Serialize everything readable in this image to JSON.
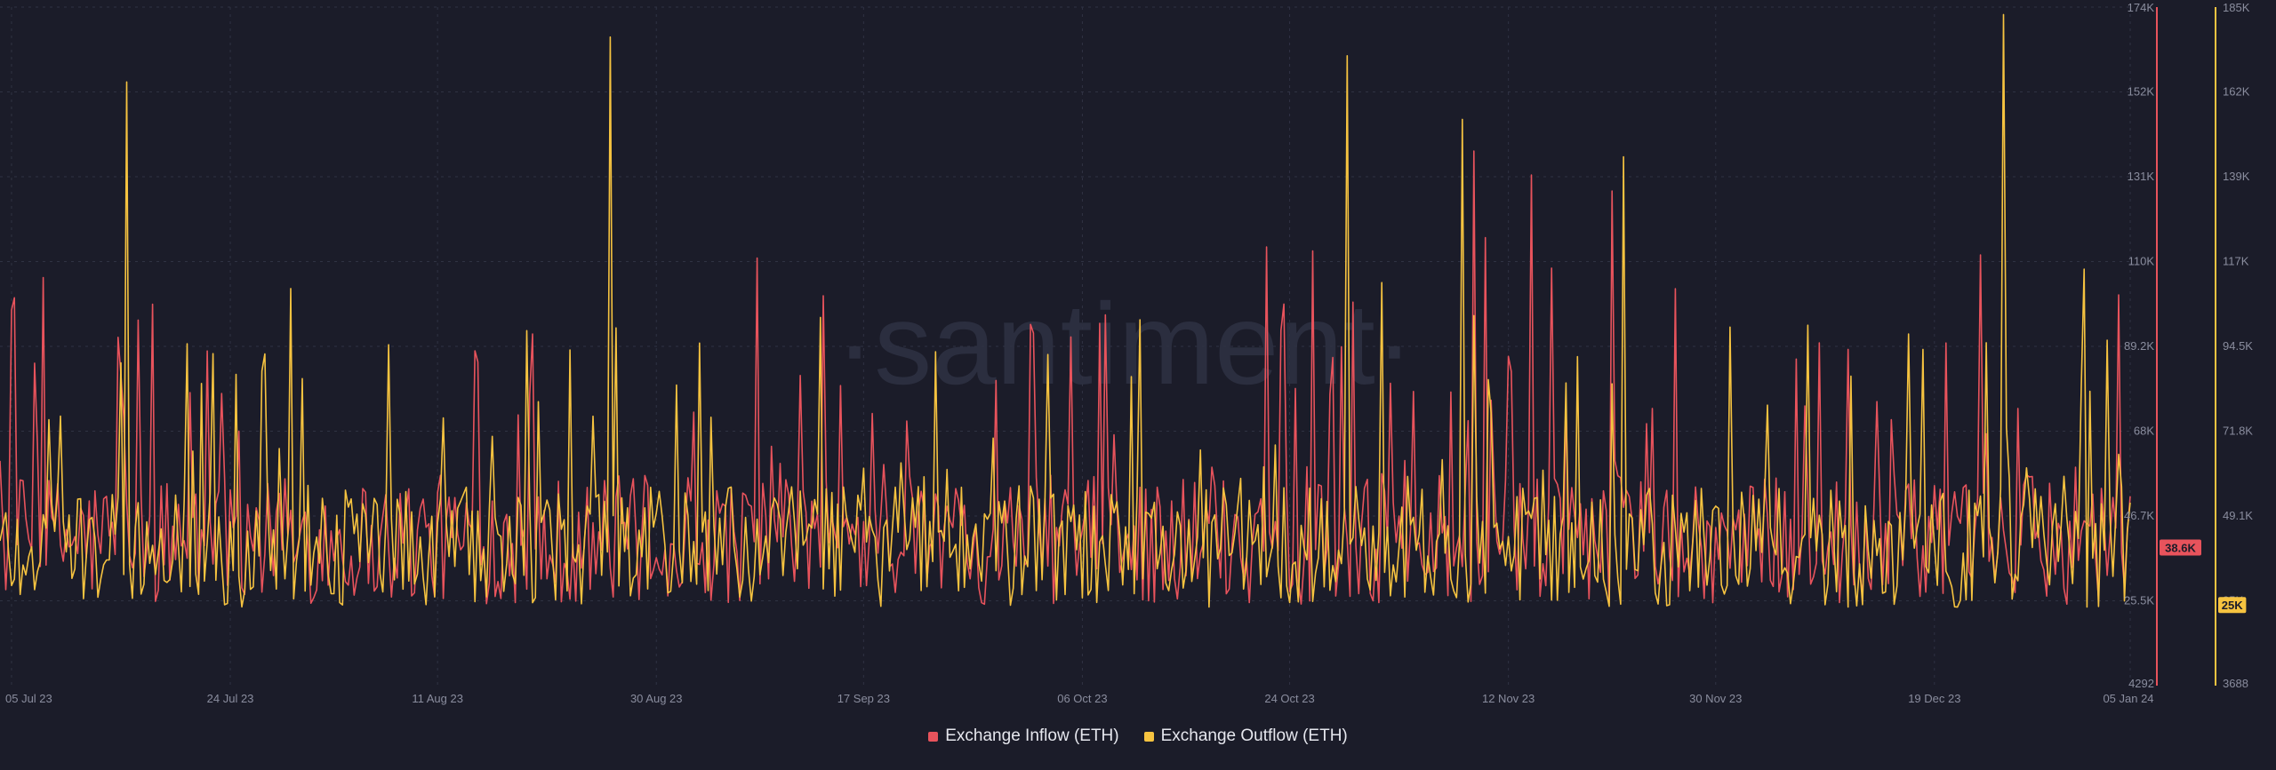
{
  "watermark": "·santiment·",
  "colors": {
    "background": "#1b1c29",
    "inflow": "#e8535c",
    "outflow": "#f6c340",
    "badge_text": "#1b1c29"
  },
  "chart_data": {
    "type": "line",
    "title": "",
    "x_tick_labels": [
      "05 Jul 23",
      "24 Jul 23",
      "11 Aug 23",
      "30 Aug 23",
      "17 Sep 23",
      "06 Oct 23",
      "24 Oct 23",
      "12 Nov 23",
      "30 Nov 23",
      "19 Dec 23",
      "05 Jan 24"
    ],
    "x_range": [
      "2023-07-04",
      "2024-01-05"
    ],
    "y_left": {
      "ticks": [
        "174K",
        "152K",
        "131K",
        "110K",
        "89.2K",
        "68K",
        "46.7K",
        "25.5K",
        "4292"
      ],
      "range": [
        4292,
        174000
      ],
      "series": "Exchange Inflow (ETH)"
    },
    "y_right": {
      "ticks": [
        "185K",
        "162K",
        "139K",
        "117K",
        "94.5K",
        "71.8K",
        "49.1K",
        "25K",
        "3688"
      ],
      "range": [
        3688,
        185000
      ],
      "series": "Exchange Outflow (ETH)"
    },
    "grid": true,
    "legend_position": "bottom-center",
    "series": [
      {
        "name": "Exchange Inflow (ETH)",
        "axis": "left",
        "last_value_label": "38.6K",
        "spikes": [
          {
            "date": "2023-07-22",
            "value": 88000
          },
          {
            "date": "2023-08-18",
            "value": 72000
          },
          {
            "date": "2023-10-08",
            "value": 97000
          },
          {
            "date": "2023-10-22",
            "value": 114000
          },
          {
            "date": "2023-10-26",
            "value": 113000
          },
          {
            "date": "2023-11-09",
            "value": 138000
          },
          {
            "date": "2023-11-14",
            "value": 132000
          },
          {
            "date": "2023-11-21",
            "value": 128000
          },
          {
            "date": "2023-12-20",
            "value": 90000
          },
          {
            "date": "2023-12-23",
            "value": 112000
          },
          {
            "date": "2024-01-04",
            "value": 102000
          }
        ]
      },
      {
        "name": "Exchange Outflow (ETH)",
        "axis": "right",
        "last_value_label": "25K",
        "spikes": [
          {
            "date": "2023-07-15",
            "value": 165000
          },
          {
            "date": "2023-08-26",
            "value": 177000
          },
          {
            "date": "2023-10-29",
            "value": 172000
          },
          {
            "date": "2023-11-08",
            "value": 155000
          },
          {
            "date": "2023-11-22",
            "value": 145000
          },
          {
            "date": "2023-12-08",
            "value": 100000
          },
          {
            "date": "2023-12-25",
            "value": 183000
          },
          {
            "date": "2024-01-01",
            "value": 115000
          },
          {
            "date": "2024-01-03",
            "value": 96000
          }
        ]
      }
    ]
  }
}
